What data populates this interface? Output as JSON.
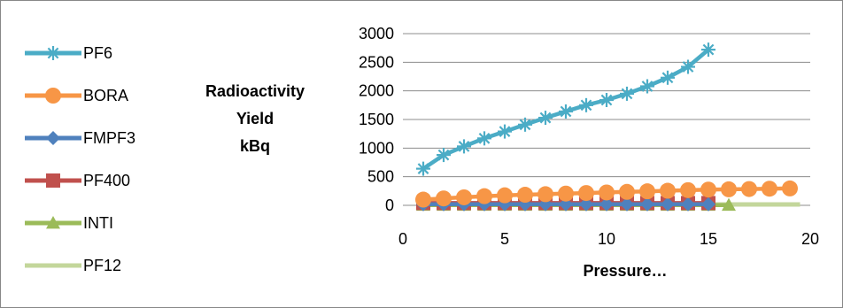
{
  "chart_data": {
    "type": "line",
    "title": "",
    "ylabel_lines": [
      "Radioactivity",
      "Yield",
      "kBq"
    ],
    "xlabel": "Pressure…",
    "xlim": [
      0,
      20
    ],
    "ylim": [
      0,
      3000
    ],
    "x_ticks": [
      "0",
      "5",
      "10",
      "15",
      "20"
    ],
    "y_ticks": [
      "0",
      "500",
      "1000",
      "1500",
      "2000",
      "2500",
      "3000"
    ],
    "grid": "horizontal",
    "legend_position": "left",
    "series": [
      {
        "name": "PF6",
        "color": "#4BACC6",
        "marker": "asterisk",
        "points": [
          [
            1,
            640
          ],
          [
            2,
            880
          ],
          [
            3,
            1030
          ],
          [
            4,
            1170
          ],
          [
            5,
            1290
          ],
          [
            6,
            1410
          ],
          [
            7,
            1530
          ],
          [
            8,
            1640
          ],
          [
            9,
            1750
          ],
          [
            10,
            1840
          ],
          [
            11,
            1950
          ],
          [
            12,
            2080
          ],
          [
            13,
            2230
          ],
          [
            14,
            2420
          ],
          [
            15,
            2720
          ]
        ]
      },
      {
        "name": "BORA",
        "color": "#F79646",
        "marker": "circle",
        "points": [
          [
            1,
            100
          ],
          [
            2,
            120
          ],
          [
            3,
            140
          ],
          [
            4,
            160
          ],
          [
            5,
            175
          ],
          [
            6,
            185
          ],
          [
            7,
            195
          ],
          [
            8,
            205
          ],
          [
            9,
            215
          ],
          [
            10,
            225
          ],
          [
            11,
            235
          ],
          [
            12,
            245
          ],
          [
            13,
            255
          ],
          [
            14,
            265
          ],
          [
            15,
            275
          ],
          [
            16,
            280
          ],
          [
            17,
            285
          ],
          [
            18,
            290
          ],
          [
            19,
            295
          ]
        ]
      },
      {
        "name": "FMPF3",
        "color": "#4F81BD",
        "marker": "diamond",
        "points": [
          [
            1,
            20
          ],
          [
            2,
            20
          ],
          [
            3,
            20
          ],
          [
            4,
            20
          ],
          [
            5,
            20
          ],
          [
            6,
            20
          ],
          [
            7,
            20
          ],
          [
            8,
            20
          ],
          [
            9,
            20
          ],
          [
            10,
            20
          ],
          [
            11,
            20
          ],
          [
            12,
            20
          ],
          [
            13,
            20
          ],
          [
            14,
            20
          ],
          [
            15,
            20
          ]
        ]
      },
      {
        "name": "PF400",
        "color": "#C0504D",
        "marker": "square",
        "points": [
          [
            1,
            40
          ],
          [
            2,
            40
          ],
          [
            3,
            40
          ],
          [
            4,
            40
          ],
          [
            5,
            40
          ],
          [
            6,
            40
          ],
          [
            7,
            40
          ],
          [
            8,
            40
          ],
          [
            9,
            40
          ],
          [
            10,
            40
          ],
          [
            11,
            40
          ],
          [
            12,
            40
          ],
          [
            13,
            40
          ],
          [
            14,
            40
          ],
          [
            15,
            40
          ]
        ]
      },
      {
        "name": "INTI",
        "color": "#9BBB59",
        "marker": "triangle",
        "points": [
          [
            1,
            5
          ],
          [
            2,
            5
          ],
          [
            3,
            5
          ],
          [
            4,
            5
          ],
          [
            5,
            5
          ],
          [
            6,
            5
          ],
          [
            7,
            5
          ],
          [
            8,
            5
          ],
          [
            9,
            5
          ],
          [
            10,
            5
          ],
          [
            11,
            5
          ],
          [
            12,
            5
          ],
          [
            13,
            5
          ],
          [
            14,
            5
          ],
          [
            15,
            5
          ],
          [
            16,
            5
          ]
        ]
      },
      {
        "name": "PF12",
        "color": "#C3D69B",
        "marker": "none",
        "points": [
          [
            15,
            15
          ],
          [
            16,
            15
          ],
          [
            17,
            15
          ],
          [
            18,
            15
          ],
          [
            19,
            15
          ],
          [
            19.5,
            15
          ]
        ]
      }
    ]
  }
}
